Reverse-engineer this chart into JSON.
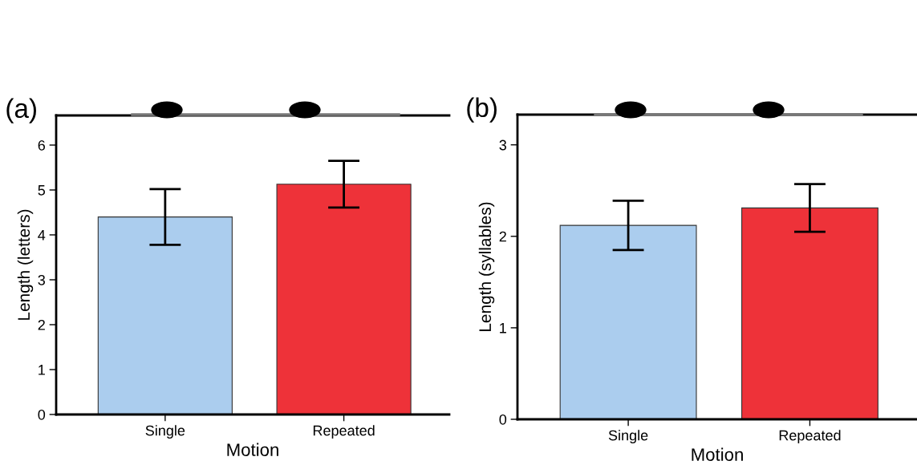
{
  "chart_data": [
    {
      "type": "bar",
      "title": "(a)",
      "xlabel": "Motion",
      "ylabel": "Length (letters)",
      "categories": [
        "Single",
        "Repeated"
      ],
      "values": [
        4.4,
        5.13
      ],
      "errors": [
        0.62,
        0.52
      ],
      "colors": [
        "#abcdee",
        "#ee3239"
      ],
      "ylim": [
        0,
        6.66
      ],
      "yticks": [
        0,
        1,
        2,
        3,
        4,
        5,
        6
      ],
      "grid": false,
      "legend": false
    },
    {
      "type": "bar",
      "title": "(b)",
      "xlabel": "Motion",
      "ylabel": "Length (syllables)",
      "categories": [
        "Single",
        "Repeated"
      ],
      "values": [
        2.12,
        2.31
      ],
      "errors": [
        0.27,
        0.26
      ],
      "colors": [
        "#abcdee",
        "#ee3239"
      ],
      "ylim": [
        0,
        3.33
      ],
      "yticks": [
        0,
        1,
        2,
        3
      ],
      "grid": false,
      "legend": false
    }
  ]
}
